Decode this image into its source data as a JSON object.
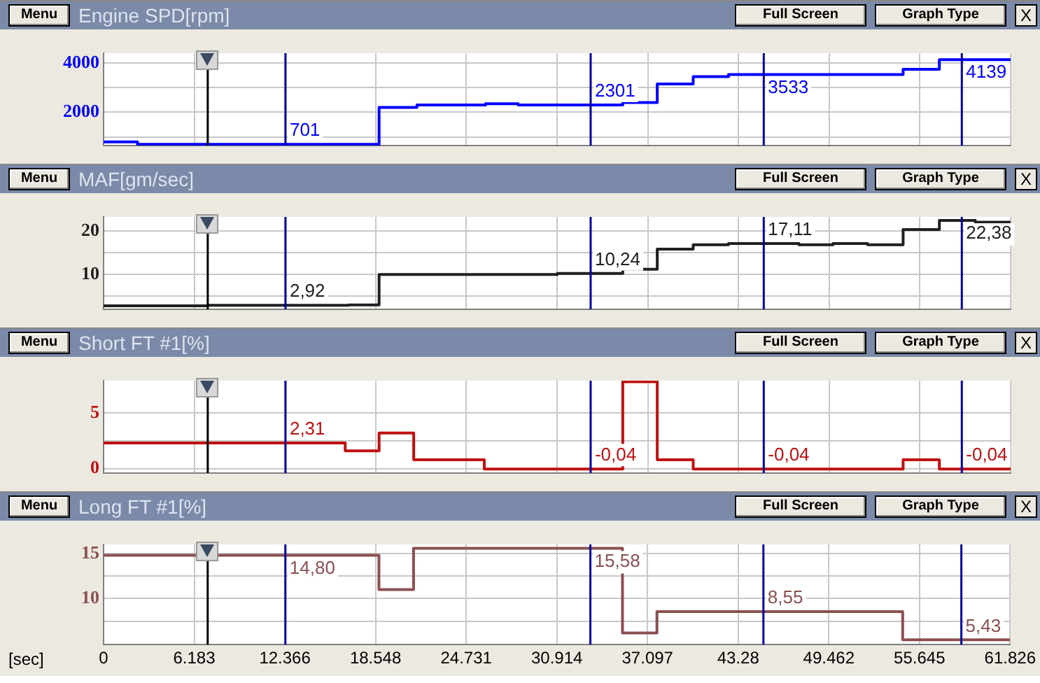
{
  "chart_data": [
    {
      "type": "step",
      "title": "Engine SPD[rpm]",
      "annotations": [
        "Menu",
        "Full Screen",
        "Graph Type",
        "X",
        {
          "text": "701",
          "x": 12.4,
          "y": 701
        },
        {
          "text": "2301",
          "x": 33.2,
          "y": 2301
        },
        {
          "text": "3533",
          "x": 45.0,
          "y": 3533
        },
        {
          "text": "4139",
          "x": 58.5,
          "y": 4139
        }
      ],
      "x": [
        0,
        2.31,
        18.78,
        21.36,
        26.04,
        28.26,
        35.39,
        37.74,
        40.19,
        42.6,
        54.5,
        56.97,
        61.826
      ],
      "series": [
        {
          "color": "#0000ff",
          "values": [
            800,
            701,
            2200,
            2300,
            2350,
            2301,
            2400,
            3150,
            3450,
            3533,
            3750,
            4139,
            4139
          ]
        }
      ],
      "xlim": [
        0,
        61.826
      ],
      "xticks": [
        0,
        6.183,
        12.366,
        18.548,
        24.731,
        30.914,
        37.097,
        43.28,
        49.462,
        55.645,
        61.826
      ],
      "ylim": [
        650,
        4400
      ],
      "yticks": [
        {
          "value": 1000,
          "label": null
        },
        2000,
        {
          "value": 3000,
          "label": null
        },
        4000
      ],
      "grid": true,
      "tick_labels": "y",
      "ref_lines": [
        {
          "axis": "x",
          "value": 7.1,
          "color": "#000000"
        },
        {
          "axis": "x",
          "value": 12.4,
          "color": "#0000a0"
        },
        {
          "axis": "x",
          "value": 33.2,
          "color": "#0000a0"
        },
        {
          "axis": "x",
          "value": 45.0,
          "color": "#0000a0"
        },
        {
          "axis": "x",
          "value": 58.5,
          "color": "#0000a0"
        }
      ]
    },
    {
      "type": "step",
      "title": "MAF[gm/sec]",
      "annotations": [
        "Menu",
        "Full Screen",
        "Graph Type",
        "X",
        {
          "text": "2,92",
          "x": 12.4,
          "y": 2.92
        },
        {
          "text": "10,24",
          "x": 33.2,
          "y": 10.24
        },
        {
          "text": "17,11",
          "x": 45.0,
          "y": 17.11
        },
        {
          "text": "22,38",
          "x": 58.5,
          "y": 22.38
        }
      ],
      "x": [
        0,
        7.1,
        16.7,
        18.78,
        30.93,
        35.39,
        37.74,
        40.19,
        42.6,
        47.4,
        49.72,
        52.08,
        54.5,
        56.97,
        59.42,
        61.826
      ],
      "series": [
        {
          "color": "#202020",
          "values": [
            2.8,
            2.92,
            3,
            10,
            10.24,
            11.2,
            15.8,
            16.8,
            17.11,
            16.8,
            17.1,
            16.8,
            20.3,
            22.38,
            22,
            22
          ]
        }
      ],
      "xlim": [
        0,
        61.826
      ],
      "xticks": [
        0,
        6.183,
        12.366,
        18.548,
        24.731,
        30.914,
        37.097,
        43.28,
        49.462,
        55.645,
        61.826
      ],
      "ylim": [
        2,
        23.2
      ],
      "yticks": [
        {
          "value": 5,
          "label": null
        },
        10,
        {
          "value": 15,
          "label": null
        },
        20
      ],
      "grid": true,
      "tick_labels": "y",
      "ref_lines": [
        {
          "axis": "x",
          "value": 7.1,
          "color": "#000000"
        },
        {
          "axis": "x",
          "value": 12.4,
          "color": "#0000a0"
        },
        {
          "axis": "x",
          "value": 33.2,
          "color": "#0000a0"
        },
        {
          "axis": "x",
          "value": 45.0,
          "color": "#0000a0"
        },
        {
          "axis": "x",
          "value": 58.5,
          "color": "#0000a0"
        }
      ]
    },
    {
      "type": "step",
      "title": "Short FT #1[%]",
      "annotations": [
        "Menu",
        "Full Screen",
        "Graph Type",
        "X",
        {
          "text": "2,31",
          "x": 12.4,
          "y": 2.31
        },
        {
          "text": "-0,04",
          "x": 33.2,
          "y": -0.04
        },
        {
          "text": "-0,04",
          "x": 45.0,
          "y": -0.04
        },
        {
          "text": "-0,04",
          "x": 58.5,
          "y": -0.04
        }
      ],
      "x": [
        0,
        16.47,
        18.78,
        21.14,
        25.95,
        35.39,
        37.74,
        40.19,
        54.5,
        56.97,
        61.826
      ],
      "series": [
        {
          "color": "#c01010",
          "values": [
            2.31,
            1.6,
            3.2,
            0.8,
            -0.04,
            7.8,
            0.8,
            -0.04,
            0.8,
            -0.04,
            -0.04
          ]
        }
      ],
      "xlim": [
        0,
        61.826
      ],
      "xticks": [
        0,
        6.183,
        12.366,
        18.548,
        24.731,
        30.914,
        37.097,
        43.28,
        49.462,
        55.645,
        61.826
      ],
      "ylim": [
        -0.4,
        7.9
      ],
      "yticks": [
        0,
        {
          "value": 2.5,
          "label": null
        },
        5
      ],
      "grid": true,
      "tick_labels": "y",
      "ref_lines": [
        {
          "axis": "x",
          "value": 7.1,
          "color": "#000000"
        },
        {
          "axis": "x",
          "value": 12.4,
          "color": "#0000a0"
        },
        {
          "axis": "x",
          "value": 33.2,
          "color": "#0000a0"
        },
        {
          "axis": "x",
          "value": 45.0,
          "color": "#0000a0"
        },
        {
          "axis": "x",
          "value": 58.5,
          "color": "#0000a0"
        }
      ]
    },
    {
      "type": "step",
      "title": "Long FT #1[%]",
      "xlabel": "[sec]",
      "annotations": [
        "Menu",
        "Full Screen",
        "Graph Type",
        "X",
        {
          "text": "14,80",
          "x": 12.4,
          "y": 14.8
        },
        {
          "text": "15,58",
          "x": 33.2,
          "y": 15.58
        },
        {
          "text": "8,55",
          "x": 45.0,
          "y": 8.55
        },
        {
          "text": "5,43",
          "x": 58.5,
          "y": 5.43
        }
      ],
      "x": [
        0,
        18.78,
        21.14,
        35.39,
        37.74,
        54.5,
        61.826
      ],
      "series": [
        {
          "color": "#8b5050",
          "values": [
            14.8,
            11.0,
            15.58,
            6.2,
            8.55,
            5.43,
            5.43
          ]
        }
      ],
      "xlim": [
        0,
        61.826
      ],
      "xticks": [
        0,
        6.183,
        12.366,
        18.548,
        24.731,
        30.914,
        37.097,
        43.28,
        49.462,
        55.645,
        61.826
      ],
      "ylim": [
        4.9,
        16
      ],
      "yticks": [
        {
          "value": 7.5,
          "label": null
        },
        10,
        {
          "value": 12.5,
          "label": null
        },
        15
      ],
      "grid": true,
      "ref_lines": [
        {
          "axis": "x",
          "value": 7.1,
          "color": "#000000"
        },
        {
          "axis": "x",
          "value": 12.4,
          "color": "#0000a0"
        },
        {
          "axis": "x",
          "value": 33.2,
          "color": "#0000a0"
        },
        {
          "axis": "x",
          "value": 45.0,
          "color": "#0000a0"
        },
        {
          "axis": "x",
          "value": 58.5,
          "color": "#0000a0"
        }
      ]
    }
  ]
}
